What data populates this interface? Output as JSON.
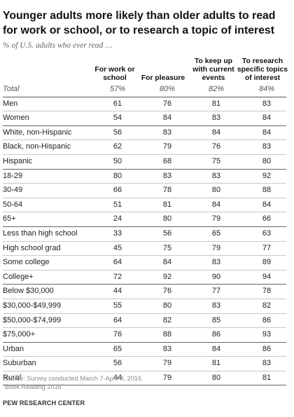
{
  "chart_data": {
    "type": "table",
    "title": "Younger adults more likely than older adults to read for work or school, or to research a topic of interest",
    "subtitle": "% of U.S. adults who ever read …",
    "columns": [
      [
        "For work or",
        "school"
      ],
      [
        "For pleasure"
      ],
      [
        "To keep up",
        "with current",
        "events"
      ],
      [
        "To research",
        "specific topics",
        "of interest"
      ]
    ],
    "rows": [
      {
        "label": "Total",
        "values": [
          "57%",
          "80%",
          "82%",
          "84%"
        ]
      },
      {
        "label": "Men",
        "values": [
          "61",
          "76",
          "81",
          "83"
        ]
      },
      {
        "label": "Women",
        "values": [
          "54",
          "84",
          "83",
          "84"
        ]
      },
      {
        "label": "White, non-Hispanic",
        "values": [
          "56",
          "83",
          "84",
          "84"
        ]
      },
      {
        "label": "Black, non-Hispanic",
        "values": [
          "62",
          "79",
          "76",
          "83"
        ]
      },
      {
        "label": "Hispanic",
        "values": [
          "50",
          "68",
          "75",
          "80"
        ]
      },
      {
        "label": "18-29",
        "values": [
          "80",
          "83",
          "83",
          "92"
        ]
      },
      {
        "label": "30-49",
        "values": [
          "66",
          "78",
          "80",
          "88"
        ]
      },
      {
        "label": "50-64",
        "values": [
          "51",
          "81",
          "84",
          "84"
        ]
      },
      {
        "label": "65+",
        "values": [
          "24",
          "80",
          "79",
          "66"
        ]
      },
      {
        "label": "Less than high school",
        "values": [
          "33",
          "56",
          "65",
          "63"
        ]
      },
      {
        "label": "High school grad",
        "values": [
          "45",
          "75",
          "79",
          "77"
        ]
      },
      {
        "label": "Some college",
        "values": [
          "64",
          "84",
          "83",
          "89"
        ]
      },
      {
        "label": "College+",
        "values": [
          "72",
          "92",
          "90",
          "94"
        ]
      },
      {
        "label": "Below $30,000",
        "values": [
          "44",
          "76",
          "77",
          "78"
        ]
      },
      {
        "label": "$30,000-$49,999",
        "values": [
          "55",
          "80",
          "83",
          "82"
        ]
      },
      {
        "label": "$50,000-$74,999",
        "values": [
          "64",
          "82",
          "85",
          "86"
        ]
      },
      {
        "label": "$75,000+",
        "values": [
          "76",
          "88",
          "86",
          "93"
        ]
      },
      {
        "label": "Urban",
        "values": [
          "65",
          "83",
          "84",
          "86"
        ]
      },
      {
        "label": "Suburban",
        "values": [
          "56",
          "79",
          "81",
          "83"
        ]
      },
      {
        "label": "Rural",
        "values": [
          "44",
          "79",
          "80",
          "81"
        ]
      }
    ],
    "source": "Source: Survey conducted March 7-April 4, 2016.",
    "source_note": "“Book Reading 2016”",
    "credit": "PEW RESEARCH CENTER"
  }
}
